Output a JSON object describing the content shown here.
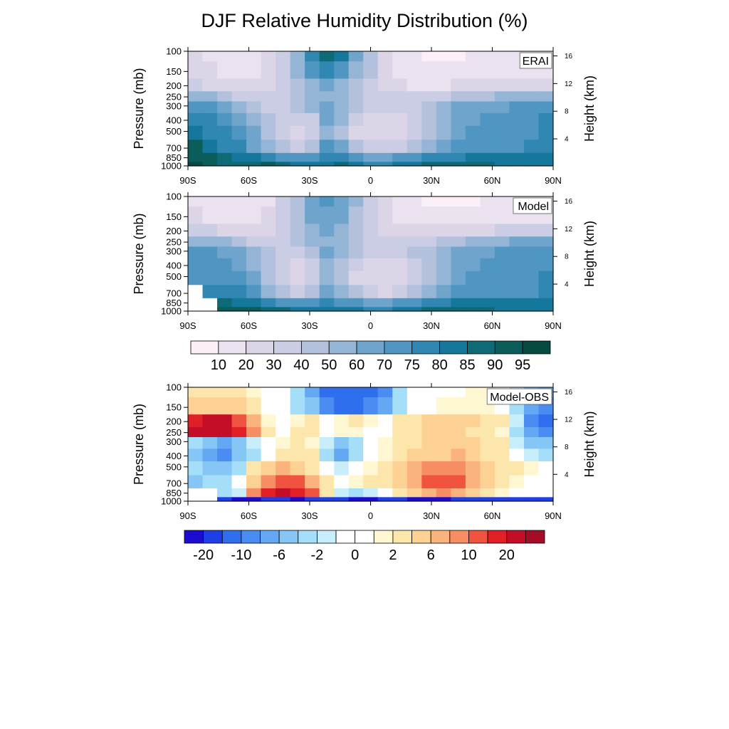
{
  "title": "DJF Relative Humidity Distribution (%)",
  "chart_data": [
    {
      "type": "heatmap",
      "panel_label": "ERAI",
      "x_ticks": [
        "90S",
        "60S",
        "30S",
        "0",
        "30N",
        "60N",
        "90N"
      ],
      "x_values": [
        -90,
        -60,
        -30,
        0,
        30,
        60,
        90
      ],
      "y_ticks": [
        "100",
        "150",
        "200",
        "250",
        "300",
        "400",
        "500",
        "700",
        "850",
        "1000"
      ],
      "y_values": [
        100,
        150,
        200,
        250,
        300,
        400,
        500,
        700,
        850,
        1000
      ],
      "y_scale": "log",
      "ylim": [
        1000,
        100
      ],
      "ylabel": "Pressure (mb)",
      "y2_ticks": [
        "4",
        "8",
        "12",
        "16"
      ],
      "y2label": "Height (km)",
      "levels": [
        10,
        20,
        30,
        40,
        50,
        60,
        70,
        75,
        80,
        85,
        90,
        95
      ],
      "colors": [
        "#fcf0f8",
        "#ebe2f0",
        "#dcd5e8",
        "#cacde3",
        "#b3c1dc",
        "#95b5d6",
        "#6fa5cd",
        "#4f96c2",
        "#2f87b2",
        "#15779c",
        "#0f6a78",
        "#0a5d5a",
        "#074a40"
      ],
      "grid": [
        [
          20,
          18,
          15,
          10,
          12,
          20,
          35,
          55,
          75,
          85,
          80,
          60,
          40,
          25,
          15,
          10,
          8,
          8,
          8,
          10,
          10,
          10,
          10,
          10,
          10
        ],
        [
          22,
          20,
          18,
          12,
          14,
          22,
          35,
          50,
          70,
          75,
          70,
          55,
          40,
          25,
          18,
          12,
          10,
          10,
          10,
          12,
          12,
          12,
          12,
          12,
          12
        ],
        [
          30,
          28,
          25,
          20,
          20,
          25,
          35,
          45,
          55,
          62,
          58,
          48,
          38,
          28,
          22,
          18,
          18,
          18,
          20,
          22,
          24,
          26,
          26,
          26,
          28
        ],
        [
          55,
          50,
          45,
          35,
          30,
          30,
          35,
          42,
          50,
          58,
          55,
          46,
          38,
          32,
          30,
          30,
          32,
          35,
          40,
          45,
          48,
          50,
          52,
          55,
          58
        ],
        [
          72,
          70,
          65,
          55,
          45,
          38,
          35,
          40,
          50,
          60,
          55,
          45,
          38,
          32,
          32,
          38,
          45,
          55,
          62,
          65,
          66,
          68,
          70,
          70,
          72
        ],
        [
          75,
          75,
          72,
          65,
          55,
          42,
          30,
          30,
          38,
          60,
          50,
          35,
          28,
          25,
          28,
          35,
          48,
          58,
          65,
          68,
          70,
          70,
          72,
          72,
          75
        ],
        [
          80,
          78,
          75,
          70,
          60,
          45,
          30,
          25,
          30,
          58,
          45,
          28,
          22,
          20,
          25,
          32,
          45,
          58,
          65,
          70,
          70,
          72,
          72,
          74,
          76
        ],
        [
          90,
          82,
          78,
          75,
          68,
          55,
          40,
          32,
          40,
          70,
          60,
          42,
          32,
          30,
          38,
          48,
          58,
          65,
          70,
          70,
          72,
          72,
          74,
          75,
          78
        ],
        [
          93,
          90,
          86,
          82,
          80,
          76,
          72,
          70,
          72,
          78,
          75,
          70,
          68,
          66,
          70,
          74,
          76,
          76,
          78,
          80,
          80,
          80,
          80,
          80,
          82
        ],
        [
          95,
          90,
          86,
          85,
          88,
          90,
          88,
          84,
          82,
          84,
          85,
          80,
          78,
          76,
          80,
          84,
          86,
          86,
          86,
          86,
          86,
          84,
          82,
          80,
          80
        ]
      ]
    },
    {
      "type": "heatmap",
      "panel_label": "Model",
      "x_ticks": [
        "90S",
        "60S",
        "30S",
        "0",
        "30N",
        "60N",
        "90N"
      ],
      "x_values": [
        -90,
        -60,
        -30,
        0,
        30,
        60,
        90
      ],
      "y_ticks": [
        "100",
        "150",
        "200",
        "250",
        "300",
        "400",
        "500",
        "700",
        "850",
        "1000"
      ],
      "y_values": [
        100,
        150,
        200,
        250,
        300,
        400,
        500,
        700,
        850,
        1000
      ],
      "y_scale": "log",
      "ylim": [
        1000,
        100
      ],
      "ylabel": "Pressure (mb)",
      "y2_ticks": [
        "4",
        "8",
        "12",
        "16"
      ],
      "y2label": "Height (km)",
      "levels": [
        10,
        20,
        30,
        40,
        50,
        60,
        70,
        75,
        80,
        85,
        90,
        95
      ],
      "colors": [
        "#fcf0f8",
        "#ebe2f0",
        "#dcd5e8",
        "#cacde3",
        "#b3c1dc",
        "#95b5d6",
        "#6fa5cd",
        "#4f96c2",
        "#2f87b2",
        "#15779c",
        "#0f6a78",
        "#0a5d5a",
        "#074a40"
      ],
      "grid": [
        [
          18,
          16,
          14,
          10,
          12,
          18,
          30,
          45,
          60,
          70,
          65,
          50,
          35,
          22,
          14,
          10,
          8,
          8,
          8,
          8,
          10,
          10,
          10,
          10,
          12
        ],
        [
          20,
          18,
          16,
          12,
          14,
          20,
          30,
          45,
          62,
          68,
          62,
          48,
          35,
          24,
          16,
          12,
          10,
          10,
          10,
          12,
          12,
          12,
          12,
          12,
          14
        ],
        [
          32,
          30,
          28,
          24,
          22,
          25,
          32,
          42,
          55,
          62,
          56,
          46,
          36,
          28,
          22,
          20,
          20,
          22,
          24,
          26,
          28,
          30,
          30,
          30,
          32
        ],
        [
          58,
          55,
          50,
          40,
          34,
          32,
          34,
          40,
          50,
          58,
          52,
          44,
          36,
          32,
          32,
          34,
          38,
          42,
          48,
          52,
          55,
          58,
          60,
          62,
          64
        ],
        [
          70,
          70,
          68,
          60,
          50,
          40,
          34,
          38,
          48,
          60,
          52,
          42,
          36,
          32,
          34,
          40,
          48,
          56,
          62,
          66,
          68,
          70,
          70,
          70,
          72
        ],
        [
          72,
          72,
          72,
          66,
          56,
          42,
          30,
          28,
          36,
          58,
          48,
          34,
          26,
          24,
          28,
          36,
          48,
          58,
          64,
          68,
          70,
          70,
          72,
          72,
          74
        ],
        [
          74,
          74,
          74,
          70,
          60,
          46,
          30,
          24,
          30,
          56,
          44,
          28,
          22,
          20,
          24,
          32,
          46,
          58,
          66,
          70,
          70,
          72,
          72,
          74,
          76
        ],
        [
          -1,
          78,
          78,
          76,
          70,
          56,
          40,
          32,
          40,
          66,
          58,
          40,
          30,
          28,
          36,
          46,
          58,
          66,
          70,
          72,
          72,
          74,
          72,
          74,
          76
        ],
        [
          -1,
          -1,
          86,
          84,
          82,
          78,
          74,
          70,
          72,
          76,
          74,
          70,
          68,
          66,
          70,
          74,
          76,
          78,
          80,
          82,
          82,
          82,
          80,
          80,
          80
        ],
        [
          -1,
          -1,
          92,
          92,
          92,
          88,
          86,
          84,
          82,
          84,
          84,
          80,
          78,
          78,
          80,
          84,
          86,
          88,
          88,
          88,
          86,
          84,
          82,
          80,
          80
        ]
      ]
    },
    {
      "type": "heatmap",
      "panel_label": "Model-OBS",
      "x_ticks": [
        "90S",
        "60S",
        "30S",
        "0",
        "30N",
        "60N",
        "90N"
      ],
      "x_values": [
        -90,
        -60,
        -30,
        0,
        30,
        60,
        90
      ],
      "y_ticks": [
        "100",
        "150",
        "200",
        "250",
        "300",
        "400",
        "500",
        "700",
        "850",
        "1000"
      ],
      "y_values": [
        100,
        150,
        200,
        250,
        300,
        400,
        500,
        700,
        850,
        1000
      ],
      "y_scale": "log",
      "ylim": [
        1000,
        100
      ],
      "ylabel": "Pressure (mb)",
      "y2_ticks": [
        "4",
        "8",
        "12",
        "16"
      ],
      "y2label": "Height (km)",
      "levels": [
        -20,
        -15,
        -10,
        -8,
        -6,
        -4,
        -2,
        -1,
        0,
        1,
        2,
        4,
        6,
        8,
        10,
        15,
        20
      ],
      "colors": [
        "#1d0bcf",
        "#1f3ee6",
        "#2f6fee",
        "#4a8cf1",
        "#64a8f4",
        "#85c6f7",
        "#a5def8",
        "#c8eefb",
        "#ffffff",
        "#ffffff",
        "#fff6d2",
        "#fde6ac",
        "#fcd193",
        "#fbb37d",
        "#f78d63",
        "#f0533f",
        "#e01f26",
        "#c40e27",
        "#a30d25"
      ],
      "grid": [
        [
          2,
          3,
          3,
          2,
          1,
          0,
          -1,
          -4,
          -8,
          -12,
          -15,
          -14,
          -12,
          -10,
          -4,
          -1,
          0,
          0,
          0,
          1,
          1,
          0,
          -2,
          -6,
          -8
        ],
        [
          4,
          5,
          5,
          4,
          2,
          0,
          -1,
          -3,
          -6,
          -10,
          -12,
          -12,
          -10,
          -8,
          -3,
          -1,
          0,
          1,
          1,
          1,
          1,
          0,
          -3,
          -8,
          -10
        ],
        [
          18,
          22,
          20,
          14,
          6,
          1,
          0,
          1,
          2,
          0,
          1,
          2,
          1,
          0,
          2,
          3,
          4,
          4,
          4,
          4,
          3,
          2,
          -2,
          -10,
          -12
        ],
        [
          20,
          28,
          25,
          18,
          8,
          2,
          0,
          2,
          3,
          0,
          1,
          1,
          0,
          0,
          2,
          3,
          4,
          4,
          4,
          3,
          2,
          1,
          -3,
          -8,
          -10
        ],
        [
          -3,
          -6,
          -8,
          -5,
          -2,
          -1,
          1,
          2,
          1,
          -2,
          -5,
          -3,
          -1,
          1,
          2,
          3,
          4,
          5,
          5,
          4,
          3,
          2,
          -2,
          -5,
          -6
        ],
        [
          -5,
          -8,
          -10,
          -6,
          -3,
          -1,
          2,
          3,
          2,
          -4,
          -8,
          -4,
          -1,
          1,
          3,
          4,
          5,
          5,
          6,
          4,
          3,
          2,
          0,
          -2,
          -3
        ],
        [
          -4,
          -6,
          -5,
          -3,
          2,
          4,
          6,
          5,
          3,
          0,
          -2,
          -1,
          1,
          2,
          4,
          6,
          8,
          8,
          8,
          6,
          4,
          3,
          2,
          1,
          0
        ],
        [
          -6,
          -4,
          -3,
          -1,
          4,
          8,
          12,
          10,
          6,
          2,
          0,
          1,
          2,
          2,
          4,
          6,
          10,
          12,
          10,
          6,
          4,
          2,
          1,
          0,
          0
        ],
        [
          -999,
          -999,
          -4,
          -2,
          8,
          15,
          20,
          18,
          10,
          2,
          -2,
          -4,
          -2,
          0,
          2,
          4,
          6,
          8,
          6,
          4,
          2,
          1,
          0,
          0,
          0
        ],
        [
          -999,
          -999,
          -20,
          -22,
          -22,
          -20,
          -20,
          -22,
          -20,
          -20,
          -20,
          -22,
          -22,
          -20,
          -20,
          -22,
          -22,
          -22,
          -20,
          -20,
          -20,
          -20,
          -20,
          -20,
          -20
        ]
      ]
    }
  ],
  "colorbars": [
    {
      "labels": [
        "10",
        "20",
        "30",
        "40",
        "50",
        "60",
        "70",
        "75",
        "80",
        "85",
        "90",
        "95"
      ]
    },
    {
      "labels": [
        "-20",
        "-10",
        "-6",
        "-2",
        "0",
        "2",
        "6",
        "10",
        "20"
      ]
    }
  ]
}
